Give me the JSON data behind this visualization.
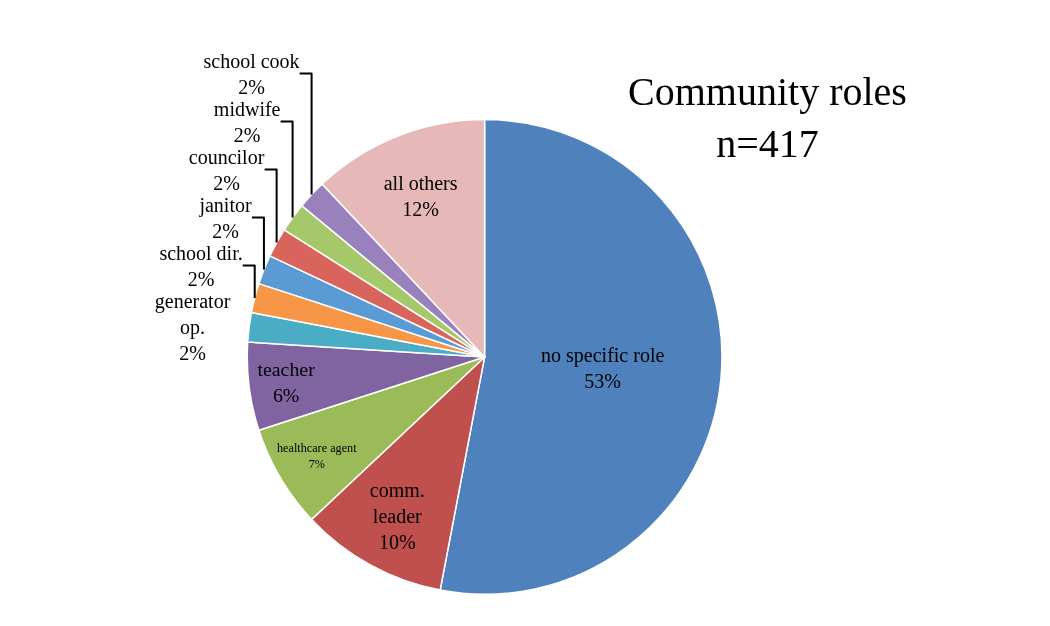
{
  "chart_data": {
    "type": "pie",
    "title": "Community roles\nn=417",
    "categories": [
      "no specific role",
      "comm.\nleader",
      "healthcare agent",
      "teacher",
      "generator\nop.",
      "school dir.",
      "janitor",
      "councilor",
      "midwife",
      "school cook",
      "all others"
    ],
    "values": [
      53,
      10,
      7,
      6,
      2,
      2,
      2,
      2,
      2,
      2,
      12
    ],
    "value_labels": [
      "53%",
      "10%",
      "7%",
      "6%",
      "2%",
      "2%",
      "2%",
      "2%",
      "2%",
      "2%",
      "12%"
    ],
    "colors": [
      "#4f81bd",
      "#c0504d",
      "#9bbb59",
      "#8064a2",
      "#4bacc6",
      "#f79646",
      "#5b9bd5",
      "#d9645c",
      "#a5c86a",
      "#9881bd",
      "#e6b9b8"
    ],
    "legend": false
  }
}
